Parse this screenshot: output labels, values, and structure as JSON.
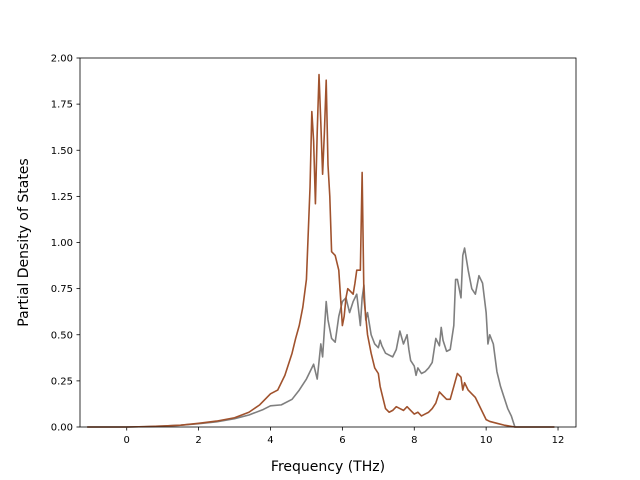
{
  "chart_data": {
    "type": "line",
    "title": "",
    "xlabel": "Frequency (THz)",
    "ylabel": "Partial Density of States",
    "xlim": [
      -1.3,
      12.5
    ],
    "ylim": [
      0,
      2.0
    ],
    "xticks": [
      0,
      2,
      4,
      6,
      8,
      10,
      12
    ],
    "xtick_labels": [
      "0",
      "2",
      "4",
      "6",
      "8",
      "10",
      "12"
    ],
    "yticks": [
      0,
      0.25,
      0.5,
      0.75,
      1.0,
      1.25,
      1.5,
      1.75,
      2.0
    ],
    "ytick_labels": [
      "0.00",
      "0.25",
      "0.50",
      "0.75",
      "1.00",
      "1.25",
      "1.50",
      "1.75",
      "2.00"
    ],
    "grid": false,
    "legend": "none",
    "series": [
      {
        "color": "#7f7f7f",
        "points": [
          [
            -1.1,
            0
          ],
          [
            0,
            0
          ],
          [
            0.5,
            0.002
          ],
          [
            1,
            0.005
          ],
          [
            1.5,
            0.01
          ],
          [
            2,
            0.018
          ],
          [
            2.5,
            0.028
          ],
          [
            3,
            0.045
          ],
          [
            3.4,
            0.065
          ],
          [
            3.8,
            0.095
          ],
          [
            4.0,
            0.115
          ],
          [
            4.3,
            0.12
          ],
          [
            4.6,
            0.15
          ],
          [
            4.8,
            0.2
          ],
          [
            5.0,
            0.26
          ],
          [
            5.1,
            0.3
          ],
          [
            5.2,
            0.34
          ],
          [
            5.3,
            0.26
          ],
          [
            5.4,
            0.45
          ],
          [
            5.45,
            0.38
          ],
          [
            5.55,
            0.68
          ],
          [
            5.6,
            0.58
          ],
          [
            5.7,
            0.48
          ],
          [
            5.8,
            0.46
          ],
          [
            5.9,
            0.6
          ],
          [
            6.0,
            0.68
          ],
          [
            6.1,
            0.7
          ],
          [
            6.2,
            0.62
          ],
          [
            6.3,
            0.68
          ],
          [
            6.4,
            0.72
          ],
          [
            6.5,
            0.55
          ],
          [
            6.55,
            0.7
          ],
          [
            6.6,
            0.77
          ],
          [
            6.65,
            0.58
          ],
          [
            6.7,
            0.62
          ],
          [
            6.8,
            0.5
          ],
          [
            6.9,
            0.45
          ],
          [
            7.0,
            0.43
          ],
          [
            7.05,
            0.47
          ],
          [
            7.1,
            0.44
          ],
          [
            7.2,
            0.4
          ],
          [
            7.3,
            0.39
          ],
          [
            7.4,
            0.38
          ],
          [
            7.5,
            0.42
          ],
          [
            7.6,
            0.52
          ],
          [
            7.7,
            0.45
          ],
          [
            7.8,
            0.5
          ],
          [
            7.85,
            0.42
          ],
          [
            7.9,
            0.36
          ],
          [
            8.0,
            0.33
          ],
          [
            8.05,
            0.28
          ],
          [
            8.1,
            0.32
          ],
          [
            8.2,
            0.29
          ],
          [
            8.3,
            0.3
          ],
          [
            8.4,
            0.32
          ],
          [
            8.5,
            0.35
          ],
          [
            8.6,
            0.48
          ],
          [
            8.7,
            0.44
          ],
          [
            8.75,
            0.54
          ],
          [
            8.8,
            0.47
          ],
          [
            8.9,
            0.41
          ],
          [
            9.0,
            0.42
          ],
          [
            9.1,
            0.55
          ],
          [
            9.15,
            0.8
          ],
          [
            9.2,
            0.8
          ],
          [
            9.3,
            0.7
          ],
          [
            9.35,
            0.93
          ],
          [
            9.4,
            0.97
          ],
          [
            9.5,
            0.85
          ],
          [
            9.6,
            0.75
          ],
          [
            9.7,
            0.72
          ],
          [
            9.8,
            0.82
          ],
          [
            9.9,
            0.78
          ],
          [
            10.0,
            0.62
          ],
          [
            10.05,
            0.45
          ],
          [
            10.1,
            0.5
          ],
          [
            10.2,
            0.45
          ],
          [
            10.3,
            0.3
          ],
          [
            10.4,
            0.22
          ],
          [
            10.5,
            0.16
          ],
          [
            10.6,
            0.1
          ],
          [
            10.7,
            0.06
          ],
          [
            10.75,
            0.03
          ],
          [
            10.8,
            0
          ],
          [
            11.0,
            0
          ],
          [
            11.9,
            0
          ]
        ]
      },
      {
        "color": "#a0522d",
        "points": [
          [
            -1.1,
            0
          ],
          [
            0,
            0
          ],
          [
            0.5,
            0.002
          ],
          [
            1,
            0.005
          ],
          [
            1.5,
            0.01
          ],
          [
            2,
            0.02
          ],
          [
            2.5,
            0.032
          ],
          [
            3,
            0.05
          ],
          [
            3.4,
            0.08
          ],
          [
            3.7,
            0.12
          ],
          [
            4.0,
            0.18
          ],
          [
            4.2,
            0.2
          ],
          [
            4.4,
            0.28
          ],
          [
            4.6,
            0.4
          ],
          [
            4.7,
            0.48
          ],
          [
            4.8,
            0.55
          ],
          [
            4.9,
            0.65
          ],
          [
            5.0,
            0.8
          ],
          [
            5.1,
            1.3
          ],
          [
            5.15,
            1.71
          ],
          [
            5.2,
            1.55
          ],
          [
            5.25,
            1.21
          ],
          [
            5.3,
            1.6
          ],
          [
            5.35,
            1.91
          ],
          [
            5.4,
            1.65
          ],
          [
            5.45,
            1.37
          ],
          [
            5.5,
            1.6
          ],
          [
            5.55,
            1.88
          ],
          [
            5.6,
            1.42
          ],
          [
            5.65,
            1.25
          ],
          [
            5.7,
            0.95
          ],
          [
            5.8,
            0.93
          ],
          [
            5.9,
            0.85
          ],
          [
            6.0,
            0.55
          ],
          [
            6.05,
            0.6
          ],
          [
            6.1,
            0.7
          ],
          [
            6.15,
            0.75
          ],
          [
            6.2,
            0.74
          ],
          [
            6.3,
            0.72
          ],
          [
            6.35,
            0.78
          ],
          [
            6.4,
            0.85
          ],
          [
            6.5,
            0.85
          ],
          [
            6.55,
            1.38
          ],
          [
            6.6,
            0.7
          ],
          [
            6.65,
            0.6
          ],
          [
            6.7,
            0.5
          ],
          [
            6.8,
            0.4
          ],
          [
            6.9,
            0.32
          ],
          [
            7.0,
            0.29
          ],
          [
            7.05,
            0.22
          ],
          [
            7.1,
            0.18
          ],
          [
            7.2,
            0.1
          ],
          [
            7.3,
            0.08
          ],
          [
            7.4,
            0.09
          ],
          [
            7.5,
            0.11
          ],
          [
            7.6,
            0.1
          ],
          [
            7.7,
            0.09
          ],
          [
            7.8,
            0.11
          ],
          [
            7.9,
            0.09
          ],
          [
            8.0,
            0.07
          ],
          [
            8.1,
            0.08
          ],
          [
            8.2,
            0.06
          ],
          [
            8.3,
            0.07
          ],
          [
            8.4,
            0.08
          ],
          [
            8.5,
            0.1
          ],
          [
            8.6,
            0.13
          ],
          [
            8.7,
            0.19
          ],
          [
            8.8,
            0.17
          ],
          [
            8.9,
            0.15
          ],
          [
            9.0,
            0.15
          ],
          [
            9.1,
            0.22
          ],
          [
            9.2,
            0.29
          ],
          [
            9.3,
            0.27
          ],
          [
            9.35,
            0.2
          ],
          [
            9.4,
            0.24
          ],
          [
            9.5,
            0.2
          ],
          [
            9.6,
            0.18
          ],
          [
            9.7,
            0.16
          ],
          [
            9.8,
            0.12
          ],
          [
            9.9,
            0.08
          ],
          [
            10.0,
            0.04
          ],
          [
            10.1,
            0.03
          ],
          [
            10.3,
            0.02
          ],
          [
            10.5,
            0.01
          ],
          [
            10.8,
            0
          ],
          [
            11.0,
            0
          ],
          [
            11.9,
            0
          ]
        ]
      }
    ]
  }
}
